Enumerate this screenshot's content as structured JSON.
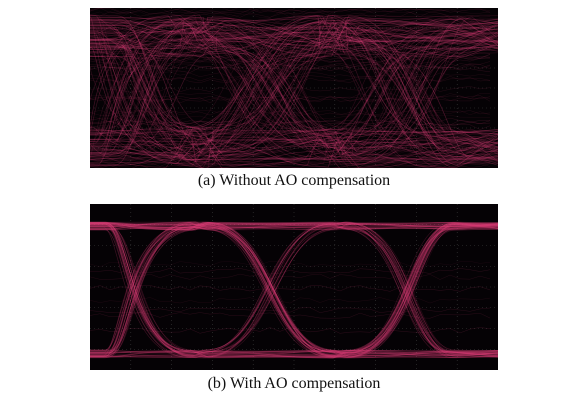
{
  "figures": [
    {
      "caption": "(a) Without AO compensation",
      "trace_color": "#e0407a",
      "state": "distorted-eye"
    },
    {
      "caption": "(b) With AO compensation",
      "trace_color": "#e0407a",
      "state": "open-eye"
    }
  ]
}
